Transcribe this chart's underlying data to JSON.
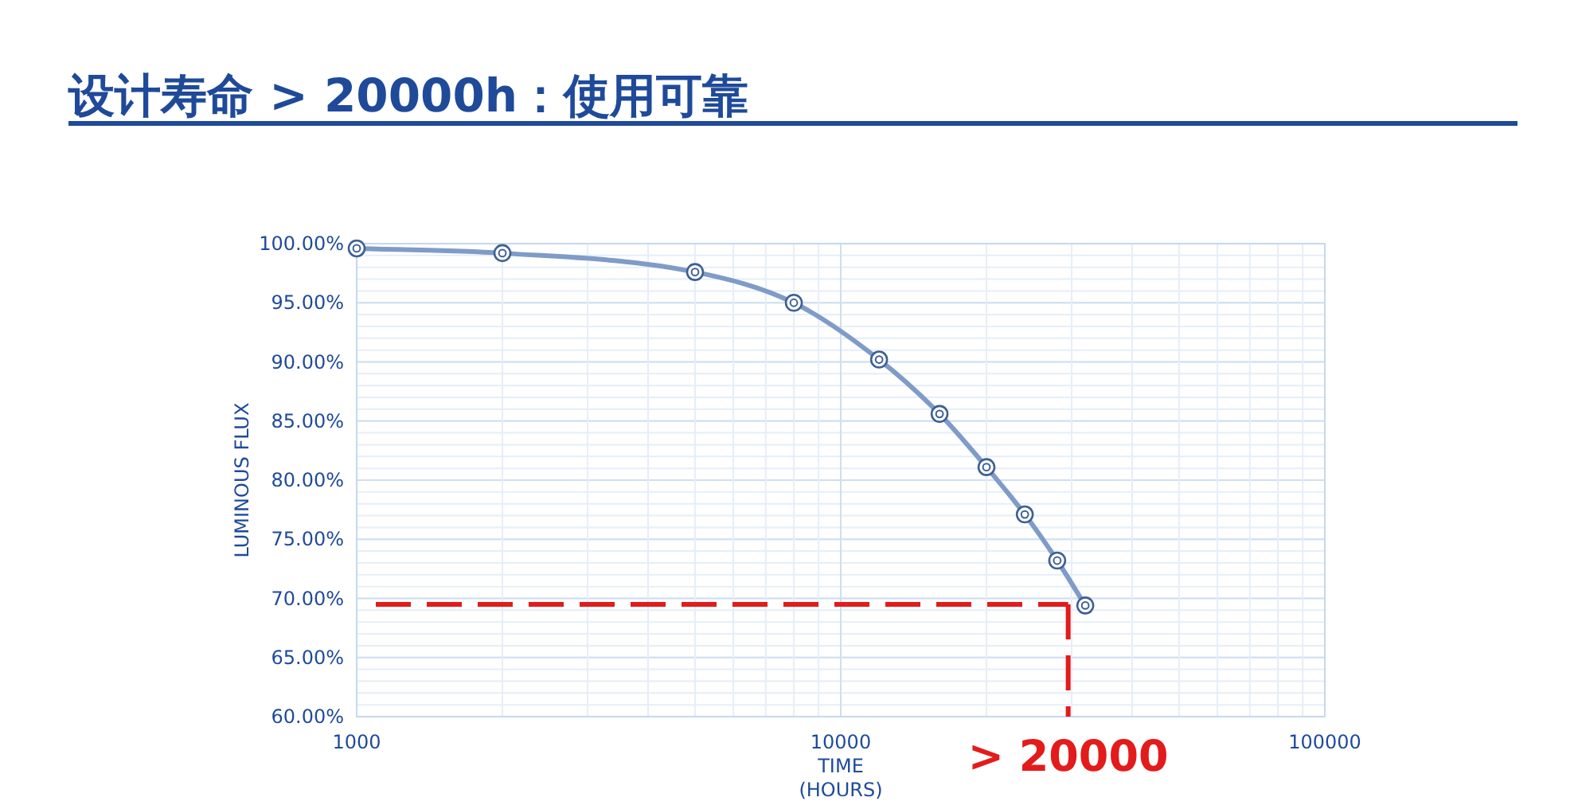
{
  "chart_data": {
    "type": "line",
    "title": "设计寿命 > 20000h：使用可靠",
    "xlabel": "TIME (HOURS)",
    "ylabel": "LUMINOUS FLUX",
    "x": [
      1000,
      2000,
      5000,
      8000,
      12000,
      16000,
      20000,
      24000,
      28000,
      32000
    ],
    "series": [
      {
        "color": "#7f9cc8",
        "values": [
          99.6,
          99.2,
          97.6,
          95.0,
          90.2,
          85.6,
          81.1,
          77.1,
          73.2,
          69.4
        ]
      }
    ],
    "log": "x",
    "xlim": [
      1000,
      100000
    ],
    "xticks": [
      1000,
      10000,
      100000
    ],
    "ylim": [
      60,
      100
    ],
    "yticks": [
      {
        "value": 60,
        "label": "60.00%"
      },
      {
        "value": 65,
        "label": "65.00%"
      },
      {
        "value": 70,
        "label": "70.00%"
      },
      {
        "value": 75,
        "label": "75.00%"
      },
      {
        "value": 80,
        "label": "80.00%"
      },
      {
        "value": 85,
        "label": "85.00%"
      },
      {
        "value": 90,
        "label": "90.00%"
      },
      {
        "value": 95,
        "label": "95.00%"
      },
      {
        "value": 100,
        "label": "100.00%"
      }
    ],
    "grid": true,
    "marker": "circle",
    "line_style": "solid",
    "ref_lines": [
      {
        "axis": "y",
        "value": 69.5,
        "color": "#e31b1b",
        "line_style": "dashed"
      },
      {
        "axis": "x",
        "value": 29500,
        "color": "#e31b1b",
        "line_style": "dashed"
      }
    ],
    "annotations": [
      "> 20000"
    ]
  }
}
